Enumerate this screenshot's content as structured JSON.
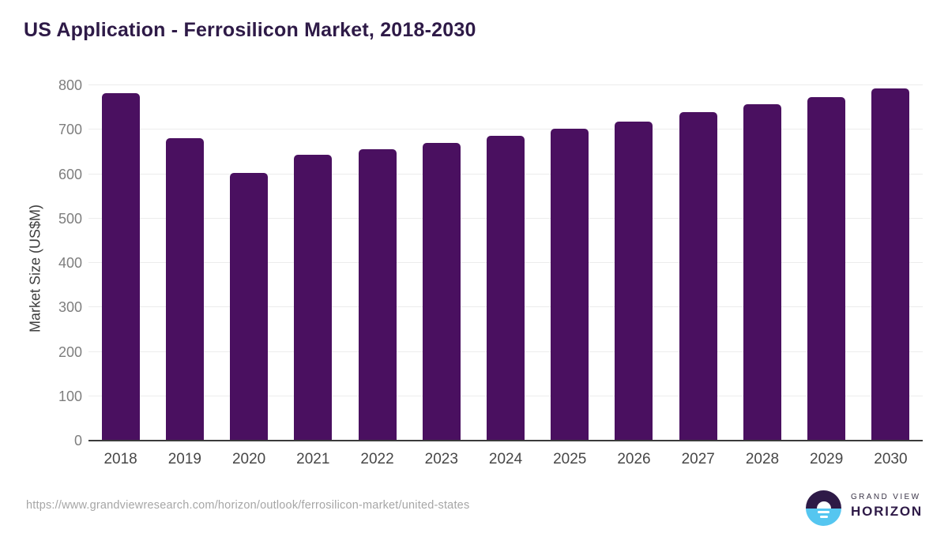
{
  "title": "US Application - Ferrosilicon Market, 2018-2030",
  "y_axis": {
    "label": "Market Size (US$M)"
  },
  "footer": {
    "source_url": "https://www.grandviewresearch.com/horizon/outlook/ferrosilicon-market/united-states",
    "brand": {
      "line1": "GRAND VIEW",
      "line2": "HORIZON"
    }
  },
  "colors": {
    "bar": "#4a1060",
    "title_text": "#2e1a47",
    "gridline": "#ececec",
    "axis_line": "#3b3b3b",
    "y_tick_text": "#7e7e7e",
    "x_tick_text": "#474747",
    "url_text": "#a6a6a6",
    "logo_dark": "#2e1a47",
    "logo_blue": "#55c6f0"
  },
  "chart_data": {
    "type": "bar",
    "title": "US Application - Ferrosilicon Market, 2018-2030",
    "categories": [
      "2018",
      "2019",
      "2020",
      "2021",
      "2022",
      "2023",
      "2024",
      "2025",
      "2026",
      "2027",
      "2028",
      "2029",
      "2030"
    ],
    "values": [
      783,
      681,
      602,
      644,
      656,
      671,
      687,
      703,
      719,
      739,
      757,
      773,
      793
    ],
    "xlabel": "",
    "ylabel": "Market Size (US$M)",
    "ylim": [
      0,
      800
    ],
    "yticks": [
      0,
      100,
      200,
      300,
      400,
      500,
      600,
      700,
      800
    ],
    "bar_color": "#4a1060",
    "grid": true,
    "legend_position": "none"
  }
}
